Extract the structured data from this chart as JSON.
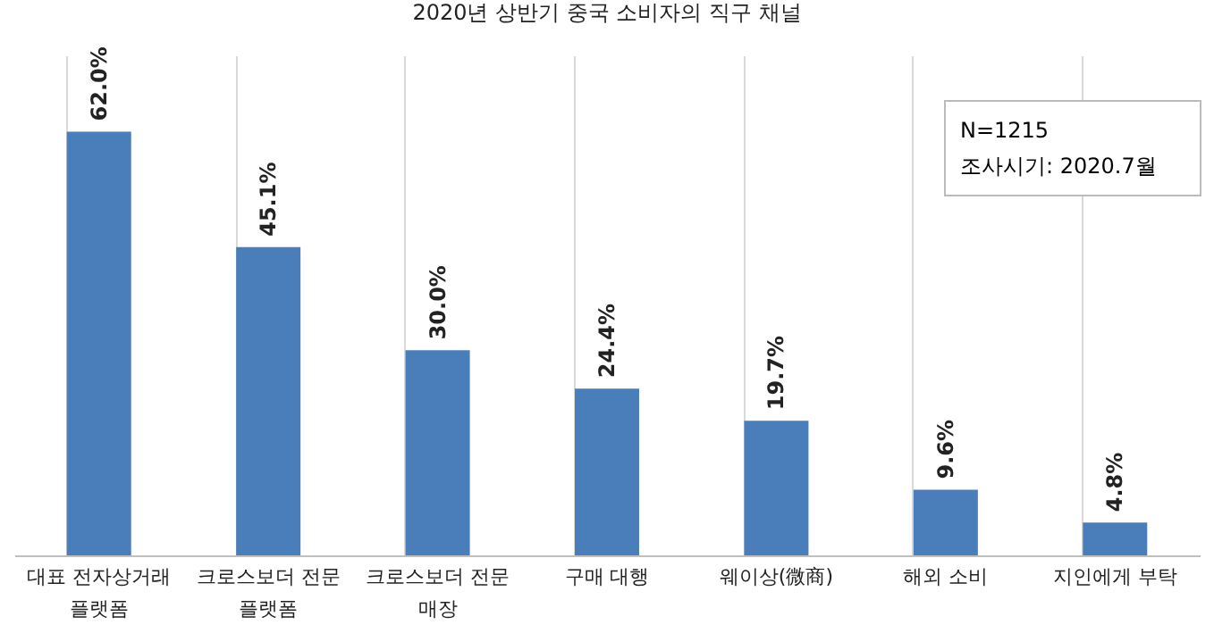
{
  "chart_data": {
    "type": "bar",
    "title": "2020년 상반기 중국 소비자의 직구 채널",
    "categories": [
      "대표 전자상거래 플랫폼",
      "크로스보더 전문 플랫폼",
      "크로스보더 전문 매장",
      "구매 대행",
      "웨이상(微商)",
      "해외 소비",
      "지인에게 부탁"
    ],
    "values": [
      62.0,
      45.1,
      30.0,
      24.4,
      19.7,
      9.6,
      4.8
    ],
    "value_labels": [
      "62.0%",
      "45.1%",
      "30.0%",
      "24.4%",
      "19.7%",
      "9.6%",
      "4.8%"
    ],
    "color": "#4a7ebb",
    "grid": "x",
    "tick_labels": "x",
    "annotations": [
      "N=1215",
      "조사시기: 2020.7월"
    ]
  }
}
